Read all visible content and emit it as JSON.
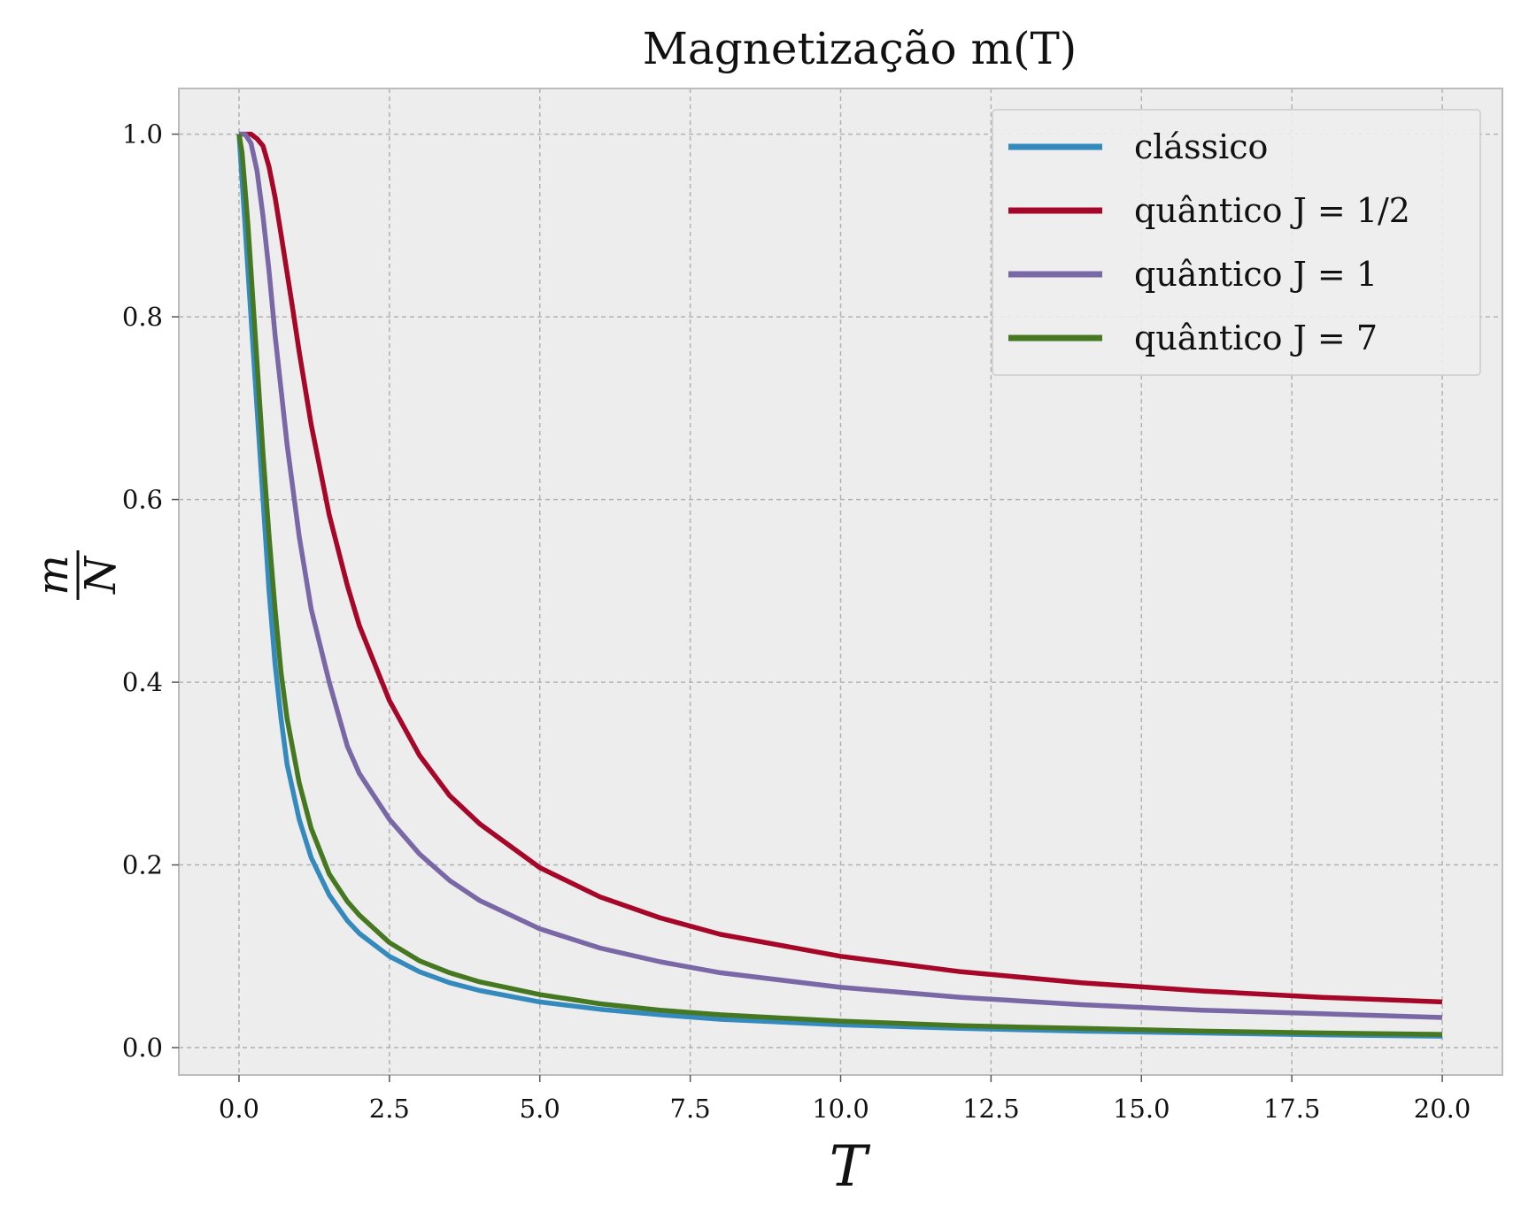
{
  "chart_data": {
    "type": "line",
    "title": "Magnetização m(T)",
    "xlabel": "T",
    "ylabel": "m/N",
    "ylabel_numerator": "m",
    "ylabel_denominator": "N",
    "xlim": [
      -1.0,
      21.0
    ],
    "ylim": [
      -0.03,
      1.05
    ],
    "xticks": [
      0.0,
      2.5,
      5.0,
      7.5,
      10.0,
      12.5,
      15.0,
      17.5,
      20.0
    ],
    "xtick_labels": [
      "0.0",
      "2.5",
      "5.0",
      "7.5",
      "10.0",
      "12.5",
      "15.0",
      "17.5",
      "20.0"
    ],
    "yticks": [
      0.0,
      0.2,
      0.4,
      0.6,
      0.8,
      1.0
    ],
    "ytick_labels": [
      "0.0",
      "0.2",
      "0.4",
      "0.6",
      "0.8",
      "1.0"
    ],
    "grid": true,
    "legend_position": "top-right",
    "plot_background": "#ededed",
    "series": [
      {
        "name": "clássico",
        "color": "#348abd",
        "x": [
          0,
          0.05,
          0.1,
          0.15,
          0.2,
          0.3,
          0.4,
          0.5,
          0.6,
          0.7,
          0.8,
          1.0,
          1.2,
          1.5,
          1.8,
          2.0,
          2.5,
          3.0,
          3.5,
          4.0,
          5.0,
          6.0,
          7.0,
          8.0,
          10.0,
          12.0,
          14.0,
          16.0,
          18.0,
          20.0
        ],
        "y": [
          1.0,
          0.95,
          0.9,
          0.85,
          0.8,
          0.7,
          0.6,
          0.5,
          0.42,
          0.36,
          0.31,
          0.25,
          0.208,
          0.167,
          0.139,
          0.125,
          0.1,
          0.083,
          0.071,
          0.0625,
          0.05,
          0.042,
          0.036,
          0.031,
          0.025,
          0.021,
          0.018,
          0.016,
          0.014,
          0.0125
        ]
      },
      {
        "name": "quântico J = 1/2",
        "color": "#a60628",
        "x": [
          0,
          0.1,
          0.2,
          0.3,
          0.4,
          0.5,
          0.6,
          0.7,
          0.8,
          0.9,
          1.0,
          1.2,
          1.5,
          1.8,
          2.0,
          2.5,
          3.0,
          3.5,
          4.0,
          5.0,
          6.0,
          7.0,
          8.0,
          10.0,
          12.0,
          14.0,
          16.0,
          18.0,
          20.0
        ],
        "y": [
          1.0,
          1.0,
          1.0,
          0.995,
          0.987,
          0.964,
          0.931,
          0.89,
          0.848,
          0.806,
          0.762,
          0.682,
          0.583,
          0.506,
          0.462,
          0.38,
          0.32,
          0.276,
          0.245,
          0.197,
          0.165,
          0.142,
          0.124,
          0.1,
          0.083,
          0.071,
          0.062,
          0.055,
          0.05
        ]
      },
      {
        "name": "quântico J = 1",
        "color": "#7a68a6",
        "x": [
          0,
          0.1,
          0.2,
          0.3,
          0.4,
          0.5,
          0.6,
          0.7,
          0.8,
          1.0,
          1.2,
          1.5,
          1.8,
          2.0,
          2.5,
          3.0,
          3.5,
          4.0,
          5.0,
          6.0,
          7.0,
          8.0,
          10.0,
          12.0,
          14.0,
          16.0,
          18.0,
          20.0
        ],
        "y": [
          1.0,
          1.0,
          0.99,
          0.96,
          0.91,
          0.85,
          0.78,
          0.72,
          0.66,
          0.56,
          0.48,
          0.4,
          0.33,
          0.3,
          0.25,
          0.212,
          0.183,
          0.161,
          0.13,
          0.109,
          0.094,
          0.082,
          0.066,
          0.055,
          0.047,
          0.041,
          0.037,
          0.033
        ]
      },
      {
        "name": "quântico J = 7",
        "color": "#467821",
        "x": [
          0,
          0.05,
          0.1,
          0.15,
          0.2,
          0.3,
          0.4,
          0.5,
          0.6,
          0.7,
          0.8,
          1.0,
          1.2,
          1.5,
          1.8,
          2.0,
          2.5,
          3.0,
          3.5,
          4.0,
          5.0,
          6.0,
          7.0,
          8.0,
          10.0,
          12.0,
          14.0,
          16.0,
          18.0,
          20.0
        ],
        "y": [
          1.0,
          0.98,
          0.94,
          0.9,
          0.85,
          0.75,
          0.65,
          0.56,
          0.48,
          0.41,
          0.36,
          0.29,
          0.24,
          0.19,
          0.16,
          0.145,
          0.115,
          0.095,
          0.082,
          0.072,
          0.058,
          0.048,
          0.041,
          0.036,
          0.029,
          0.024,
          0.021,
          0.018,
          0.016,
          0.0145
        ]
      }
    ]
  }
}
